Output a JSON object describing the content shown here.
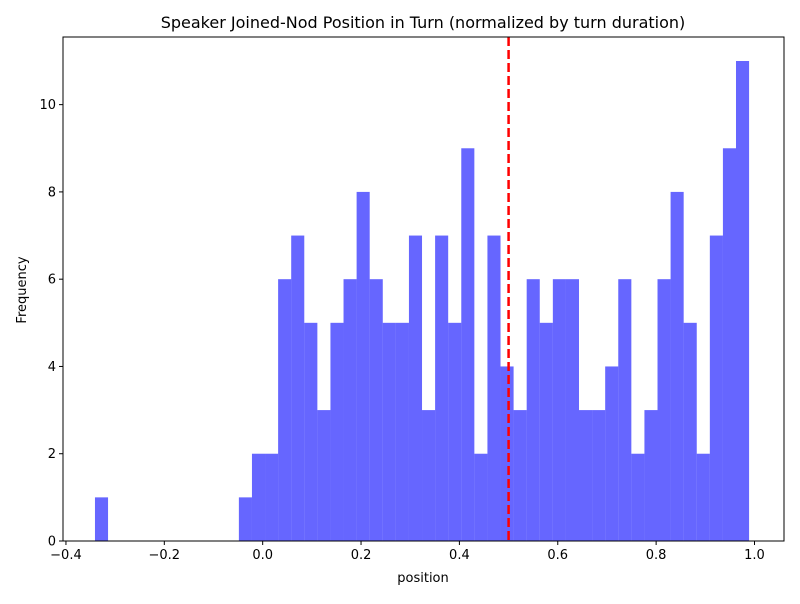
{
  "chart_data": {
    "type": "bar",
    "title": "Speaker Joined-Nod Position in Turn (normalized by turn duration)",
    "xlabel": "position",
    "ylabel": "Frequency",
    "xlim": [
      -0.406,
      1.06
    ],
    "ylim": [
      0,
      11.55
    ],
    "bar_color": "#0000ff",
    "bar_alpha": 0.6,
    "bin_start": -0.341,
    "bin_width": 0.0266,
    "bin_counts": [
      1,
      0,
      0,
      0,
      0,
      0,
      0,
      0,
      0,
      0,
      0,
      1,
      2,
      2,
      6,
      7,
      5,
      3,
      5,
      6,
      8,
      6,
      5,
      5,
      7,
      3,
      7,
      5,
      9,
      2,
      7,
      4,
      3,
      6,
      5,
      6,
      6,
      3,
      3,
      4,
      6,
      2,
      3,
      6,
      8,
      5,
      2,
      7,
      9,
      11
    ],
    "reference_line": {
      "x": 0.5,
      "color": "#ff0000",
      "style": "dashed"
    },
    "xticks": [
      -0.4,
      -0.2,
      0.0,
      0.2,
      0.4,
      0.6,
      0.8,
      1.0
    ],
    "xtick_labels": [
      "−0.4",
      "−0.2",
      "0.0",
      "0.2",
      "0.4",
      "0.6",
      "0.8",
      "1.0"
    ],
    "yticks": [
      0,
      2,
      4,
      6,
      8,
      10
    ],
    "ytick_labels": [
      "0",
      "2",
      "4",
      "6",
      "8",
      "10"
    ],
    "grid": false,
    "legend": "none"
  }
}
